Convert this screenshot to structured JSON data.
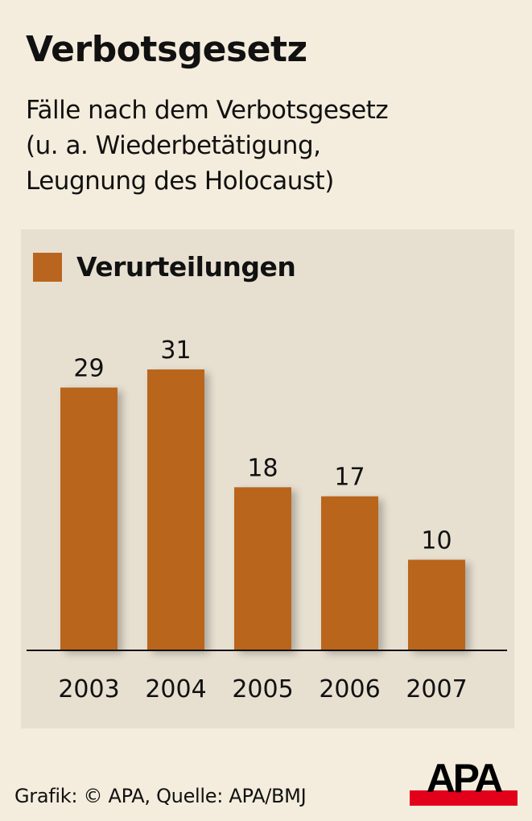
{
  "title": "Verbotsgesetz",
  "subtitle_lines": [
    "Fälle nach dem Verbotsgesetz",
    "(u. a. Wiederbetätigung,",
    "Leugnung des Holocaust)"
  ],
  "footer": "Grafik: © APA, Quelle: APA/BMJ",
  "logo_text": "APA",
  "colors": {
    "bar": "#b9651f",
    "panel": "#e7e0d1",
    "background": "#f4eddd",
    "logo_red": "#e2001a"
  },
  "chart_data": {
    "type": "bar",
    "title": "Verbotsgesetz",
    "legend": [
      "Verurteilungen"
    ],
    "legend_position": "top-left",
    "categories": [
      "2003",
      "2004",
      "2005",
      "2006",
      "2007"
    ],
    "series": [
      {
        "name": "Verurteilungen",
        "values": [
          29,
          31,
          18,
          17,
          10
        ]
      }
    ],
    "ylim": [
      0,
      31
    ],
    "grid": false,
    "xlabel": "",
    "ylabel": ""
  }
}
